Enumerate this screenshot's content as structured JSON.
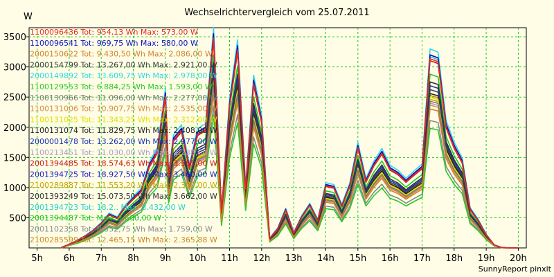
{
  "chart_data": {
    "type": "line",
    "title": "Wechselrichtervergleich vom 25.07.2011",
    "ylabel": "W",
    "xlabel": "",
    "footer": "SunnyReport pinxit",
    "x_range": [
      4.75,
      20.25
    ],
    "ylim": [
      0,
      3650
    ],
    "x_ticks": [
      5,
      6,
      7,
      8,
      9,
      10,
      11,
      12,
      13,
      14,
      15,
      16,
      17,
      18,
      19,
      20
    ],
    "x_tick_labels": [
      "5h",
      "6h",
      "7h",
      "8h",
      "9h",
      "10h",
      "11h",
      "12h",
      "13h",
      "14h",
      "15h",
      "16h",
      "17h",
      "18h",
      "19h",
      "20h"
    ],
    "y_ticks": [
      500,
      1000,
      1500,
      2000,
      2500,
      3000,
      3500
    ],
    "y_tick_labels": [
      "500",
      "1000",
      "1500",
      "2000",
      "2500",
      "3000",
      "3500"
    ],
    "grid": true,
    "legend_position": "top-left",
    "x_base": [
      5.75,
      6.25,
      6.5,
      6.75,
      7.0,
      7.25,
      7.5,
      7.75,
      8.0,
      8.25,
      8.5,
      8.75,
      9.0,
      9.1,
      9.25,
      9.5,
      9.75,
      10.0,
      10.25,
      10.5,
      10.75,
      11.0,
      11.25,
      11.5,
      11.75,
      12.0,
      12.25,
      12.5,
      12.75,
      13.0,
      13.25,
      13.5,
      13.75,
      14.0,
      14.25,
      14.5,
      14.75,
      15.0,
      15.25,
      15.5,
      15.75,
      16.0,
      16.25,
      16.5,
      16.75,
      17.0,
      17.25,
      17.5,
      17.75,
      18.0,
      18.25,
      18.5,
      18.75,
      19.0,
      19.25,
      19.5,
      19.75,
      20.0
    ],
    "base_profile": [
      5,
      120,
      200,
      290,
      410,
      560,
      500,
      690,
      830,
      960,
      1380,
      1620,
      2570,
      1200,
      1820,
      1980,
      1340,
      1920,
      2000,
      3550,
      600,
      2400,
      3350,
      1000,
      2780,
      2130,
      160,
      320,
      640,
      250,
      520,
      720,
      460,
      1050,
      1020,
      700,
      1050,
      1700,
      1120,
      1400,
      1600,
      1330,
      1250,
      1120,
      1240,
      1350,
      3200,
      3150,
      2050,
      1700,
      1450,
      650,
      460,
      220,
      50,
      5,
      0,
      0
    ],
    "series": [
      {
        "name": "1100096436",
        "tot": "954,13 Wh",
        "max": "573,00 W",
        "color": "#e8281e",
        "scale": 0.98
      },
      {
        "name": "1100096541",
        "tot": "969,75 Wh",
        "max": "580,00 W",
        "color": "#1010c8",
        "scale": 1.0
      },
      {
        "name": "2000150622",
        "tot": "9.430,50 Wh",
        "max": "2.086,00 W",
        "color": "#d4822a",
        "scale": 0.72
      },
      {
        "name": "2000154799",
        "tot": "13.267,00 Wh",
        "max": "2.921,00 W",
        "color": "#3c3c3c",
        "scale": 0.82
      },
      {
        "name": "2000149892",
        "tot": "13.609,75 Wh",
        "max": "2.978,00 W",
        "color": "#2ed8e8",
        "scale": 1.03
      },
      {
        "name": "1100129553",
        "tot": "6.884,25 Wh",
        "max": "1.593,00 W",
        "color": "#28c828",
        "scale": 0.62
      },
      {
        "name": "1100130966",
        "tot": "11.096,00 Wh",
        "max": "2.277,00 W",
        "color": "#7a7a7a",
        "scale": 0.76
      },
      {
        "name": "1100131006",
        "tot": "10.907,75 Wh",
        "max": "2.535,00 W",
        "color": "#d49048",
        "scale": 0.74
      },
      {
        "name": "1100131025",
        "tot": "11.343,25 Wh",
        "max": "2.312,00 W",
        "color": "#e0e000",
        "scale": 0.78
      },
      {
        "name": "1100131074",
        "tot": "11.829,75 Wh",
        "max": "2.408,00 W",
        "color": "#202020",
        "scale": 0.8
      },
      {
        "name": "2000001478",
        "tot": "13.262,00 Wh",
        "max": "2.977,00 W",
        "color": "#1830b8",
        "scale": 0.84
      },
      {
        "name": "1100213451",
        "tot": "11.030,00 Wh",
        "max": "2.238,00 W",
        "color": "#b098d0",
        "scale": 0.75
      },
      {
        "name": "2001394485",
        "tot": "18.574,63 Wh",
        "max": "3.361,00 W",
        "color": "#c81818",
        "scale": 0.97
      },
      {
        "name": "2001394725",
        "tot": "18.927,50 Wh",
        "max": "3.460,00 W",
        "color": "#1818d0",
        "scale": 1.0
      },
      {
        "name": "2100289887",
        "tot": "11.553,20 Wh",
        "max": "2.350,00 W",
        "color": "#d0a000",
        "scale": 0.77
      },
      {
        "name": "2001393249",
        "tot": "15.073,50 Wh",
        "max": "3.662,00 W",
        "color": "#303030",
        "scale": 0.86
      },
      {
        "name": "2001394723",
        "tot": "18.2..",
        "max": "3.432,00 W",
        "color": "#20d0d0",
        "scale": 0.99
      },
      {
        "name": "2001394487",
        "tot": "",
        "max": "3.600,00 W",
        "color": "#20c820",
        "scale": 0.9
      },
      {
        "name": "2001102358",
        "tot": "8.352,75 Wh",
        "max": "1.759,00 W",
        "color": "#8a8a8a",
        "scale": 0.66
      },
      {
        "name": "2100285599",
        "tot": "12.465,15 Wh",
        "max": "2.365,88 W",
        "color": "#d08820",
        "scale": 0.79
      }
    ]
  }
}
